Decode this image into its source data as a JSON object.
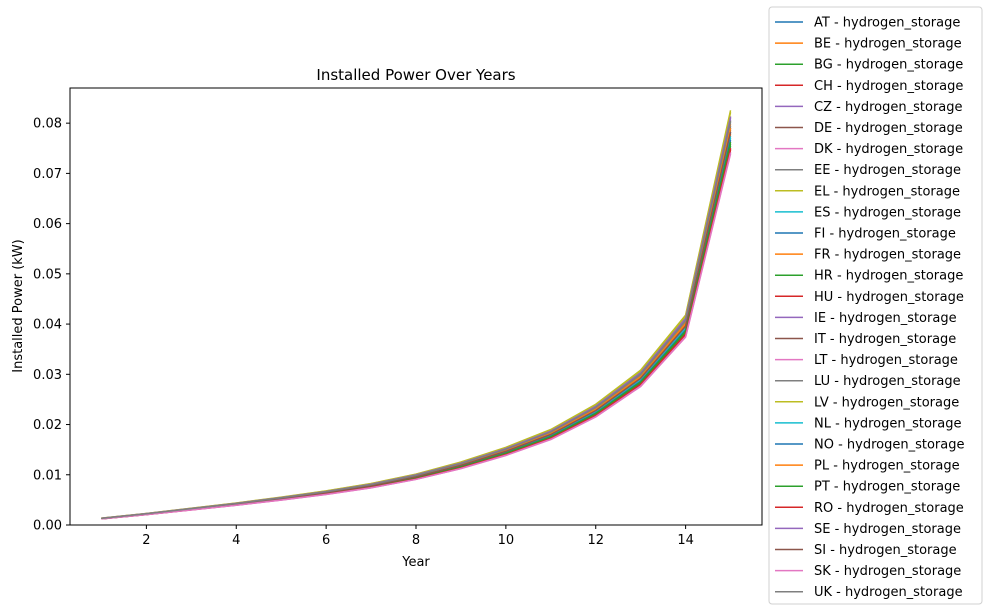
{
  "chart_data": {
    "type": "line",
    "title": "Installed Power Over Years",
    "xlabel": "Year",
    "ylabel": "Installed Power (kW)",
    "xlim": [
      0.3,
      15.7
    ],
    "ylim": [
      0,
      0.087
    ],
    "xticks": [
      2,
      4,
      6,
      8,
      10,
      12,
      14
    ],
    "yticks": [
      0.0,
      0.01,
      0.02,
      0.03,
      0.04,
      0.05,
      0.06,
      0.07,
      0.08
    ],
    "ytick_labels": [
      "0.00",
      "0.01",
      "0.02",
      "0.03",
      "0.04",
      "0.05",
      "0.06",
      "0.07",
      "0.08"
    ],
    "grid": false,
    "legend_position": "outside-right",
    "x": [
      1,
      2,
      3,
      4,
      5,
      6,
      7,
      8,
      9,
      10,
      11,
      12,
      13,
      14,
      15
    ],
    "base_values": [
      0.0013,
      0.0022,
      0.0032,
      0.0042,
      0.0053,
      0.0065,
      0.0079,
      0.0097,
      0.012,
      0.0148,
      0.0182,
      0.023,
      0.0295,
      0.04,
      0.079
    ],
    "series": [
      {
        "name": "AT - hydrogen_storage",
        "color": "#1f77b4",
        "scale": 0.99
      },
      {
        "name": "BE - hydrogen_storage",
        "color": "#ff7f0e",
        "scale": 0.985
      },
      {
        "name": "BG - hydrogen_storage",
        "color": "#2ca02c",
        "scale": 0.96
      },
      {
        "name": "CH - hydrogen_storage",
        "color": "#d62728",
        "scale": 0.945
      },
      {
        "name": "CZ - hydrogen_storage",
        "color": "#9467bd",
        "scale": 1.03
      },
      {
        "name": "DE - hydrogen_storage",
        "color": "#8c564b",
        "scale": 1.0
      },
      {
        "name": "DK - hydrogen_storage",
        "color": "#e377c2",
        "scale": 0.94
      },
      {
        "name": "EE - hydrogen_storage",
        "color": "#7f7f7f",
        "scale": 1.02
      },
      {
        "name": "EL - hydrogen_storage",
        "color": "#bcbd22",
        "scale": 1.045
      },
      {
        "name": "ES - hydrogen_storage",
        "color": "#17becf",
        "scale": 0.975
      },
      {
        "name": "FI - hydrogen_storage",
        "color": "#1f77b4",
        "scale": 1.005
      },
      {
        "name": "FR - hydrogen_storage",
        "color": "#ff7f0e",
        "scale": 1.01
      },
      {
        "name": "HR - hydrogen_storage",
        "color": "#2ca02c",
        "scale": 0.955
      },
      {
        "name": "HU - hydrogen_storage",
        "color": "#d62728",
        "scale": 0.95
      },
      {
        "name": "IE - hydrogen_storage",
        "color": "#9467bd",
        "scale": 1.025
      },
      {
        "name": "IT - hydrogen_storage",
        "color": "#8c564b",
        "scale": 0.995
      },
      {
        "name": "LT - hydrogen_storage",
        "color": "#e377c2",
        "scale": 0.935
      },
      {
        "name": "LU - hydrogen_storage",
        "color": "#7f7f7f",
        "scale": 1.015
      },
      {
        "name": "LV - hydrogen_storage",
        "color": "#bcbd22",
        "scale": 1.04
      },
      {
        "name": "NL - hydrogen_storage",
        "color": "#17becf",
        "scale": 0.98
      },
      {
        "name": "NO - hydrogen_storage",
        "color": "#1f77b4",
        "scale": 0.97
      },
      {
        "name": "PL - hydrogen_storage",
        "color": "#ff7f0e",
        "scale": 1.0
      },
      {
        "name": "PT - hydrogen_storage",
        "color": "#2ca02c",
        "scale": 0.965
      },
      {
        "name": "RO - hydrogen_storage",
        "color": "#d62728",
        "scale": 0.948
      },
      {
        "name": "SE - hydrogen_storage",
        "color": "#9467bd",
        "scale": 1.028
      },
      {
        "name": "SI - hydrogen_storage",
        "color": "#8c564b",
        "scale": 0.99
      },
      {
        "name": "SK - hydrogen_storage",
        "color": "#e377c2",
        "scale": 0.938
      },
      {
        "name": "UK - hydrogen_storage",
        "color": "#7f7f7f",
        "scale": 1.018
      }
    ]
  }
}
